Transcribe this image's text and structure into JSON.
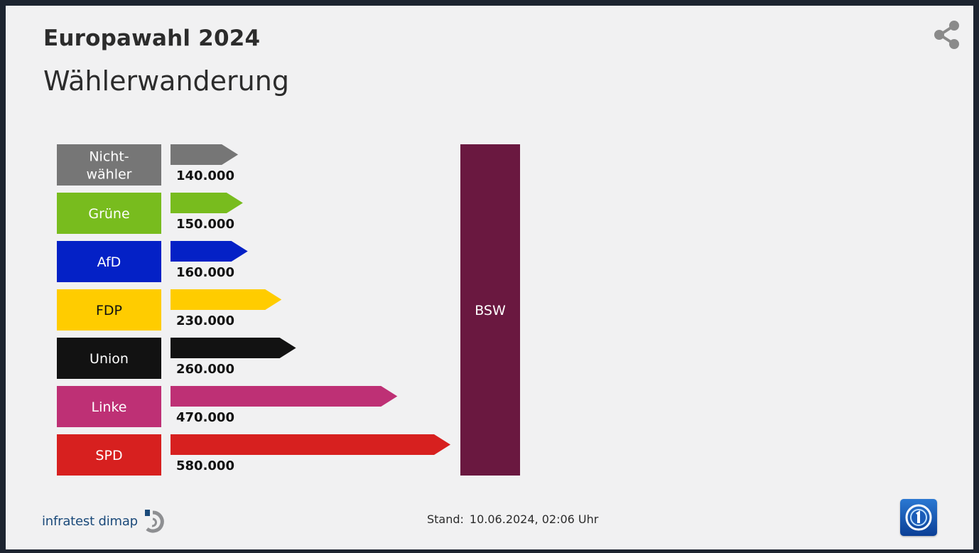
{
  "header": {
    "title": "Europawahl 2024",
    "subtitle": "Wählerwanderung"
  },
  "chart_data": {
    "type": "bar",
    "orientation": "horizontal",
    "target": {
      "label": "BSW",
      "color": "#6a1840"
    },
    "categories": [
      {
        "label": [
          "Nicht-",
          "wähler"
        ],
        "value": 140000,
        "display": "140.000",
        "color": "#767676",
        "text_color": "#ffffff"
      },
      {
        "label": [
          "Grüne"
        ],
        "value": 150000,
        "display": "150.000",
        "color": "#78bc1e",
        "text_color": "#ffffff"
      },
      {
        "label": [
          "AfD"
        ],
        "value": 160000,
        "display": "160.000",
        "color": "#0421c6",
        "text_color": "#ffffff"
      },
      {
        "label": [
          "FDP"
        ],
        "value": 230000,
        "display": "230.000",
        "color": "#ffcc00",
        "text_color": "#111111"
      },
      {
        "label": [
          "Union"
        ],
        "value": 260000,
        "display": "260.000",
        "color": "#121212",
        "text_color": "#ffffff"
      },
      {
        "label": [
          "Linke"
        ],
        "value": 470000,
        "display": "470.000",
        "color": "#be3075",
        "text_color": "#ffffff"
      },
      {
        "label": [
          "SPD"
        ],
        "value": 580000,
        "display": "580.000",
        "color": "#d7201f",
        "text_color": "#ffffff"
      }
    ]
  },
  "footer": {
    "source": "infratest dimap",
    "stand_label": "Stand:",
    "stand_value": "10.06.2024, 02:06 Uhr"
  },
  "icons": {
    "share": "share-icon",
    "infratest_logo": "infratest-logo-icon",
    "tv_logo": "tv-channel-logo-icon"
  }
}
